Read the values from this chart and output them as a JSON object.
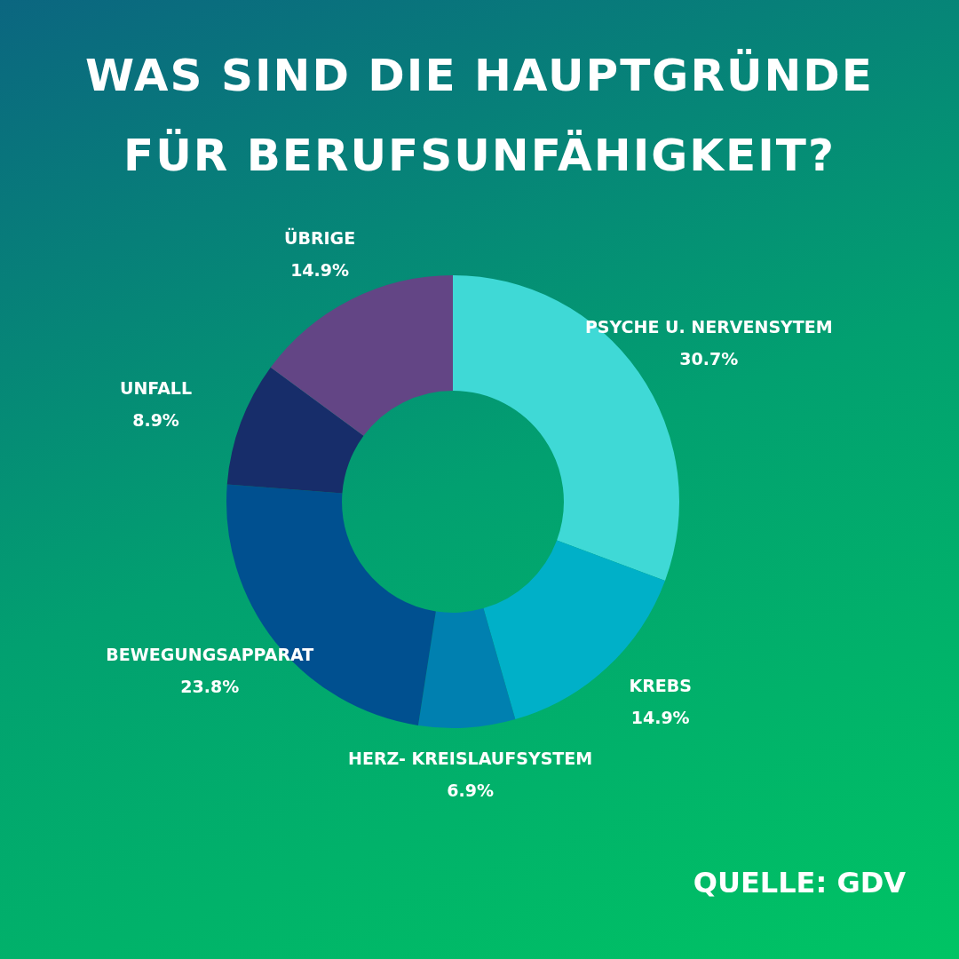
{
  "chart_data": {
    "type": "donut",
    "title": "WAS SIND DIE HAUPTGRÜNDE FÜR BERUFSUNFÄHIGKEIT?",
    "categories": [
      "PSYCHE U. NERVENSYTEM",
      "KREBS",
      "HERZ- KREISLAUFSYSTEM",
      "BEWEGUNGSAPPARAT",
      "UNFALL",
      "ÜBRIGE"
    ],
    "values": [
      30.7,
      14.9,
      6.9,
      23.8,
      8.9,
      14.9
    ],
    "value_labels": [
      "30.7%",
      "14.9%",
      "6.9%",
      "23.8%",
      "8.9%",
      "14.9%"
    ],
    "colors": [
      "#3fd9d6",
      "#00b0c8",
      "#0080b0",
      "#005090",
      "#172d6a",
      "#634585"
    ],
    "annotations": [
      "QUELLE: GDV"
    ]
  }
}
